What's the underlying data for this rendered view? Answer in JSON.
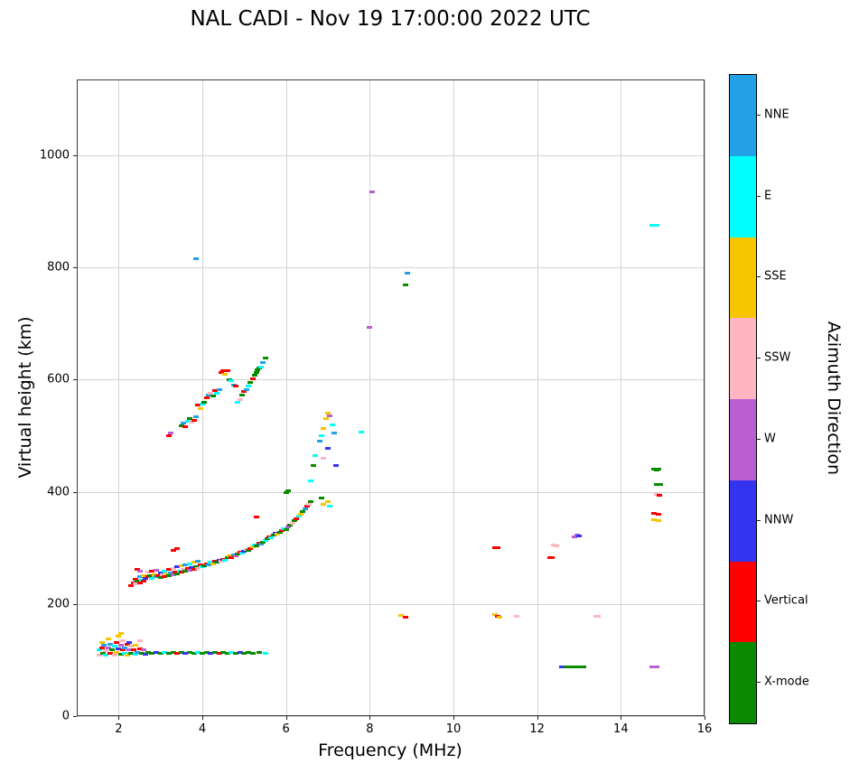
{
  "title": "NAL CADI - Nov 19 17:00:00 2022 UTC",
  "chart_data": {
    "type": "scatter",
    "title": "NAL CADI - Nov 19 17:00:00 2022 UTC",
    "xlabel": "Frequency (MHz)",
    "ylabel": "Virtual height (km)",
    "legend_title": "Azimuth Direction",
    "xlim": [
      1,
      16
    ],
    "ylim": [
      0,
      1135
    ],
    "xticks": [
      2,
      4,
      6,
      8,
      10,
      12,
      14,
      16
    ],
    "yticks": [
      0,
      200,
      400,
      600,
      800,
      1000
    ],
    "grid": true,
    "marker": "horizontal-dash",
    "categories": [
      {
        "label": "NNE",
        "color": "#23A1E6"
      },
      {
        "label": "E",
        "color": "#00FFFF"
      },
      {
        "label": "SSE",
        "color": "#F6C500"
      },
      {
        "label": "SSW",
        "color": "#FFB6C1"
      },
      {
        "label": "W",
        "color": "#BA5FD1"
      },
      {
        "label": "NNW",
        "color": "#3434F0"
      },
      {
        "label": "Vertical",
        "color": "#FF0000"
      },
      {
        "label": "X-mode",
        "color": "#0A8A00"
      }
    ],
    "points_format": [
      "frequency_MHz",
      "virtual_height_km",
      "azimuth_direction"
    ],
    "points": [
      [
        1.55,
        118,
        "E"
      ],
      [
        1.55,
        108,
        "SSW"
      ],
      [
        1.6,
        122,
        "Vertical"
      ],
      [
        1.6,
        132,
        "SSE"
      ],
      [
        1.62,
        112,
        "X-mode"
      ],
      [
        1.65,
        127,
        "NNE"
      ],
      [
        1.7,
        117,
        "SSW"
      ],
      [
        1.7,
        108,
        "E"
      ],
      [
        1.75,
        122,
        "W"
      ],
      [
        1.75,
        137,
        "SSE"
      ],
      [
        1.8,
        112,
        "Vertical"
      ],
      [
        1.8,
        128,
        "NNE"
      ],
      [
        1.85,
        118,
        "X-mode"
      ],
      [
        1.9,
        108,
        "SSW"
      ],
      [
        1.9,
        124,
        "E"
      ],
      [
        1.95,
        132,
        "Vertical"
      ],
      [
        1.95,
        114,
        "SSE"
      ],
      [
        2.0,
        142,
        "SSE"
      ],
      [
        2.0,
        120,
        "NNW"
      ],
      [
        2.05,
        147,
        "SSE"
      ],
      [
        2.05,
        110,
        "X-mode"
      ],
      [
        2.05,
        126,
        "W"
      ],
      [
        2.1,
        118,
        "Vertical"
      ],
      [
        2.1,
        135,
        "SSW"
      ],
      [
        2.15,
        112,
        "E"
      ],
      [
        2.15,
        122,
        "NNE"
      ],
      [
        2.2,
        128,
        "Vertical"
      ],
      [
        2.2,
        108,
        "SSE"
      ],
      [
        2.25,
        118,
        "W"
      ],
      [
        2.25,
        132,
        "NNW"
      ],
      [
        2.3,
        112,
        "X-mode"
      ],
      [
        2.3,
        124,
        "SSW"
      ],
      [
        2.35,
        118,
        "Vertical"
      ],
      [
        2.4,
        110,
        "E"
      ],
      [
        2.4,
        126,
        "SSE"
      ],
      [
        2.45,
        114,
        "NNE"
      ],
      [
        2.5,
        120,
        "Vertical"
      ],
      [
        2.5,
        135,
        "SSW"
      ],
      [
        2.55,
        112,
        "X-mode"
      ],
      [
        2.6,
        118,
        "W"
      ],
      [
        2.65,
        110,
        "NNW"
      ],
      [
        2.7,
        113,
        "X-mode"
      ],
      [
        2.8,
        112,
        "X-mode"
      ],
      [
        2.9,
        114,
        "NNW"
      ],
      [
        3.0,
        112,
        "X-mode"
      ],
      [
        3.1,
        113,
        "E"
      ],
      [
        3.2,
        112,
        "X-mode"
      ],
      [
        3.3,
        114,
        "X-mode"
      ],
      [
        3.4,
        112,
        "Vertical"
      ],
      [
        3.5,
        113,
        "X-mode"
      ],
      [
        3.6,
        112,
        "NNW"
      ],
      [
        3.7,
        113,
        "X-mode"
      ],
      [
        3.8,
        112,
        "X-mode"
      ],
      [
        3.9,
        114,
        "E"
      ],
      [
        4.0,
        112,
        "X-mode"
      ],
      [
        4.1,
        113,
        "X-mode"
      ],
      [
        4.2,
        112,
        "NNW"
      ],
      [
        4.3,
        113,
        "X-mode"
      ],
      [
        4.4,
        112,
        "Vertical"
      ],
      [
        4.5,
        113,
        "X-mode"
      ],
      [
        4.6,
        112,
        "X-mode"
      ],
      [
        4.7,
        114,
        "E"
      ],
      [
        4.8,
        112,
        "X-mode"
      ],
      [
        4.9,
        113,
        "NNW"
      ],
      [
        5.0,
        112,
        "X-mode"
      ],
      [
        5.1,
        113,
        "X-mode"
      ],
      [
        5.2,
        112,
        "X-mode"
      ],
      [
        5.35,
        113,
        "X-mode"
      ],
      [
        5.5,
        112,
        "E"
      ],
      [
        2.3,
        233,
        "Vertical"
      ],
      [
        2.35,
        238,
        "Vertical"
      ],
      [
        2.4,
        236,
        "SSW"
      ],
      [
        2.4,
        244,
        "Vertical"
      ],
      [
        2.45,
        240,
        "X-mode"
      ],
      [
        2.45,
        262,
        "Vertical"
      ],
      [
        2.5,
        238,
        "Vertical"
      ],
      [
        2.5,
        248,
        "NNE"
      ],
      [
        2.5,
        258,
        "W"
      ],
      [
        2.55,
        242,
        "E"
      ],
      [
        2.6,
        240,
        "Vertical"
      ],
      [
        2.6,
        250,
        "SSE"
      ],
      [
        2.65,
        245,
        "NNW"
      ],
      [
        2.7,
        248,
        "Vertical"
      ],
      [
        2.7,
        256,
        "SSW"
      ],
      [
        2.75,
        250,
        "X-mode"
      ],
      [
        2.8,
        246,
        "E"
      ],
      [
        2.8,
        258,
        "Vertical"
      ],
      [
        2.85,
        252,
        "SSE"
      ],
      [
        2.9,
        248,
        "NNE"
      ],
      [
        2.9,
        260,
        "W"
      ],
      [
        2.95,
        250,
        "Vertical"
      ],
      [
        3.0,
        247,
        "X-mode"
      ],
      [
        3.0,
        255,
        "NNW"
      ],
      [
        3.05,
        252,
        "SSW"
      ],
      [
        3.1,
        249,
        "Vertical"
      ],
      [
        3.1,
        258,
        "E"
      ],
      [
        3.15,
        253,
        "SSE"
      ],
      [
        3.2,
        250,
        "X-mode"
      ],
      [
        3.2,
        262,
        "Vertical"
      ],
      [
        3.25,
        255,
        "NNE"
      ],
      [
        3.3,
        252,
        "W"
      ],
      [
        3.3,
        264,
        "SSW"
      ],
      [
        3.3,
        296,
        "Vertical"
      ],
      [
        3.35,
        257,
        "Vertical"
      ],
      [
        3.4,
        254,
        "X-mode"
      ],
      [
        3.4,
        266,
        "NNW"
      ],
      [
        3.4,
        299,
        "Vertical"
      ],
      [
        3.45,
        259,
        "E"
      ],
      [
        3.5,
        256,
        "Vertical"
      ],
      [
        3.5,
        268,
        "SSE"
      ],
      [
        3.55,
        261,
        "SSW"
      ],
      [
        3.6,
        258,
        "X-mode"
      ],
      [
        3.6,
        270,
        "NNE"
      ],
      [
        3.65,
        263,
        "Vertical"
      ],
      [
        3.7,
        260,
        "W"
      ],
      [
        3.7,
        272,
        "E"
      ],
      [
        3.75,
        265,
        "NNW"
      ],
      [
        3.8,
        262,
        "Vertical"
      ],
      [
        3.8,
        274,
        "SSE"
      ],
      [
        3.85,
        267,
        "X-mode"
      ],
      [
        3.9,
        264,
        "SSW"
      ],
      [
        3.9,
        276,
        "NNE"
      ],
      [
        3.95,
        269,
        "Vertical"
      ],
      [
        4.0,
        266,
        "E"
      ],
      [
        4.05,
        268,
        "X-mode"
      ],
      [
        4.1,
        272,
        "Vertical"
      ],
      [
        4.15,
        270,
        "NNE"
      ],
      [
        4.2,
        274,
        "E"
      ],
      [
        4.25,
        272,
        "SSE"
      ],
      [
        4.3,
        276,
        "Vertical"
      ],
      [
        4.35,
        274,
        "X-mode"
      ],
      [
        4.4,
        278,
        "NNW"
      ],
      [
        4.45,
        276,
        "SSW"
      ],
      [
        4.5,
        280,
        "Vertical"
      ],
      [
        4.55,
        278,
        "E"
      ],
      [
        4.6,
        282,
        "X-mode"
      ],
      [
        4.65,
        285,
        "SSE"
      ],
      [
        4.7,
        283,
        "Vertical"
      ],
      [
        4.75,
        287,
        "NNE"
      ],
      [
        4.8,
        285,
        "W"
      ],
      [
        4.85,
        289,
        "X-mode"
      ],
      [
        4.9,
        292,
        "Vertical"
      ],
      [
        4.95,
        290,
        "E"
      ],
      [
        5.0,
        294,
        "NNW"
      ],
      [
        5.05,
        297,
        "SSW"
      ],
      [
        5.1,
        295,
        "X-mode"
      ],
      [
        5.15,
        299,
        "Vertical"
      ],
      [
        5.2,
        302,
        "SSE"
      ],
      [
        5.25,
        305,
        "E"
      ],
      [
        5.3,
        303,
        "X-mode"
      ],
      [
        5.3,
        355,
        "Vertical"
      ],
      [
        5.35,
        308,
        "Vertical"
      ],
      [
        5.4,
        306,
        "NNE"
      ],
      [
        5.45,
        310,
        "X-mode"
      ],
      [
        5.5,
        313,
        "E"
      ],
      [
        5.55,
        316,
        "X-mode"
      ],
      [
        5.6,
        320,
        "Vertical"
      ],
      [
        5.65,
        318,
        "E"
      ],
      [
        5.7,
        323,
        "X-mode"
      ],
      [
        5.75,
        326,
        "NNW"
      ],
      [
        5.8,
        324,
        "SSE"
      ],
      [
        5.85,
        328,
        "X-mode"
      ],
      [
        5.9,
        331,
        "Vertical"
      ],
      [
        5.95,
        334,
        "E"
      ],
      [
        6.0,
        332,
        "X-mode"
      ],
      [
        6.0,
        398,
        "X-mode"
      ],
      [
        6.05,
        337,
        "W"
      ],
      [
        6.05,
        402,
        "X-mode"
      ],
      [
        6.1,
        340,
        "X-mode"
      ],
      [
        6.15,
        344,
        "SSW"
      ],
      [
        6.2,
        348,
        "X-mode"
      ],
      [
        6.25,
        352,
        "Vertical"
      ],
      [
        6.3,
        356,
        "E"
      ],
      [
        6.35,
        360,
        "SSE"
      ],
      [
        6.4,
        365,
        "X-mode"
      ],
      [
        6.45,
        370,
        "NNE"
      ],
      [
        6.5,
        374,
        "Vertical"
      ],
      [
        6.55,
        378,
        "SSW"
      ],
      [
        6.6,
        382,
        "X-mode"
      ],
      [
        6.6,
        420,
        "E"
      ],
      [
        6.65,
        447,
        "X-mode"
      ],
      [
        6.7,
        465,
        "E"
      ],
      [
        6.8,
        490,
        "NNE"
      ],
      [
        6.85,
        388,
        "X-mode"
      ],
      [
        6.85,
        500,
        "E"
      ],
      [
        6.9,
        378,
        "SSE"
      ],
      [
        6.9,
        460,
        "SSW"
      ],
      [
        6.9,
        512,
        "SSE"
      ],
      [
        6.95,
        530,
        "SSE"
      ],
      [
        7.0,
        383,
        "SSE"
      ],
      [
        7.0,
        478,
        "NNW"
      ],
      [
        7.0,
        540,
        "SSE"
      ],
      [
        7.05,
        375,
        "E"
      ],
      [
        7.05,
        536,
        "W"
      ],
      [
        7.1,
        520,
        "E"
      ],
      [
        7.15,
        505,
        "NNE"
      ],
      [
        7.2,
        447,
        "NNW"
      ],
      [
        7.8,
        507,
        "E"
      ],
      [
        3.2,
        500,
        "Vertical"
      ],
      [
        3.25,
        505,
        "W"
      ],
      [
        3.5,
        518,
        "X-mode"
      ],
      [
        3.55,
        522,
        "NNE"
      ],
      [
        3.6,
        516,
        "Vertical"
      ],
      [
        3.65,
        525,
        "E"
      ],
      [
        3.7,
        530,
        "X-mode"
      ],
      [
        3.75,
        524,
        "SSW"
      ],
      [
        3.8,
        528,
        "Vertical"
      ],
      [
        3.85,
        533,
        "NNE"
      ],
      [
        3.9,
        555,
        "Vertical"
      ],
      [
        3.95,
        548,
        "SSE"
      ],
      [
        4.0,
        556,
        "E"
      ],
      [
        4.05,
        560,
        "X-mode"
      ],
      [
        4.1,
        568,
        "Vertical"
      ],
      [
        4.15,
        572,
        "NNE"
      ],
      [
        4.2,
        576,
        "SSW"
      ],
      [
        4.25,
        570,
        "X-mode"
      ],
      [
        4.3,
        580,
        "Vertical"
      ],
      [
        4.35,
        575,
        "E"
      ],
      [
        4.4,
        582,
        "NNE"
      ],
      [
        4.45,
        612,
        "Vertical"
      ],
      [
        4.5,
        616,
        "Vertical"
      ],
      [
        4.55,
        610,
        "SSE"
      ],
      [
        4.6,
        615,
        "Vertical"
      ],
      [
        4.65,
        600,
        "X-mode"
      ],
      [
        4.7,
        598,
        "E"
      ],
      [
        4.75,
        590,
        "NNE"
      ],
      [
        4.8,
        588,
        "Vertical"
      ],
      [
        4.85,
        560,
        "E"
      ],
      [
        4.9,
        565,
        "SSW"
      ],
      [
        4.95,
        572,
        "X-mode"
      ],
      [
        5.0,
        578,
        "Vertical"
      ],
      [
        5.05,
        582,
        "NNE"
      ],
      [
        5.1,
        588,
        "E"
      ],
      [
        5.15,
        595,
        "X-mode"
      ],
      [
        5.2,
        602,
        "Vertical"
      ],
      [
        5.25,
        608,
        "X-mode"
      ],
      [
        5.3,
        612,
        "X-mode"
      ],
      [
        5.32,
        617,
        "X-mode"
      ],
      [
        5.35,
        620,
        "X-mode"
      ],
      [
        5.4,
        622,
        "E"
      ],
      [
        5.45,
        630,
        "NNE"
      ],
      [
        5.5,
        638,
        "X-mode"
      ],
      [
        3.85,
        815,
        "NNE"
      ],
      [
        8.0,
        693,
        "W"
      ],
      [
        8.05,
        935,
        "W"
      ],
      [
        8.85,
        768,
        "X-mode"
      ],
      [
        8.9,
        790,
        "NNE"
      ],
      [
        8.75,
        180,
        "SSE"
      ],
      [
        8.85,
        177,
        "Vertical"
      ],
      [
        11.0,
        300,
        "Vertical"
      ],
      [
        11.05,
        300,
        "Vertical"
      ],
      [
        11.0,
        181,
        "SSE"
      ],
      [
        11.05,
        178,
        "Vertical"
      ],
      [
        11.1,
        176,
        "SSE"
      ],
      [
        11.5,
        178,
        "SSW"
      ],
      [
        12.3,
        282,
        "Vertical"
      ],
      [
        12.35,
        282,
        "Vertical"
      ],
      [
        12.4,
        305,
        "SSW"
      ],
      [
        12.45,
        303,
        "SSW"
      ],
      [
        12.9,
        320,
        "W"
      ],
      [
        12.95,
        322,
        "W"
      ],
      [
        13.0,
        321,
        "NNW"
      ],
      [
        12.6,
        88,
        "NNW"
      ],
      [
        12.7,
        88,
        "X-mode"
      ],
      [
        12.8,
        88,
        "X-mode"
      ],
      [
        12.9,
        88,
        "X-mode"
      ],
      [
        13.0,
        88,
        "X-mode"
      ],
      [
        13.1,
        88,
        "X-mode"
      ],
      [
        13.4,
        178,
        "SSW"
      ],
      [
        13.45,
        178,
        "SSW"
      ],
      [
        14.75,
        875,
        "E"
      ],
      [
        14.85,
        875,
        "E"
      ],
      [
        14.8,
        440,
        "X-mode"
      ],
      [
        14.85,
        438,
        "X-mode"
      ],
      [
        14.9,
        440,
        "X-mode"
      ],
      [
        14.85,
        413,
        "X-mode"
      ],
      [
        14.95,
        413,
        "X-mode"
      ],
      [
        14.85,
        396,
        "SSW"
      ],
      [
        14.92,
        394,
        "Vertical"
      ],
      [
        14.8,
        362,
        "Vertical"
      ],
      [
        14.9,
        360,
        "Vertical"
      ],
      [
        14.8,
        350,
        "SSE"
      ],
      [
        14.9,
        349,
        "SSE"
      ],
      [
        14.75,
        88,
        "W"
      ],
      [
        14.85,
        88,
        "W"
      ]
    ]
  }
}
